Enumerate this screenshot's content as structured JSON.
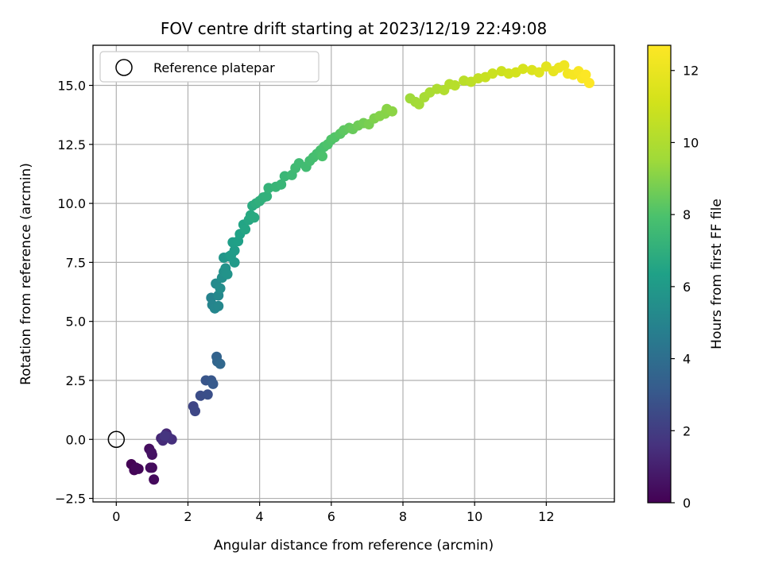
{
  "chart_data": {
    "type": "scatter",
    "title": "FOV centre drift starting at 2023/12/19 22:49:08",
    "xlabel": "Angular distance from reference (arcmin)",
    "ylabel": "Rotation from reference (arcmin)",
    "xlim": [
      -0.65,
      13.9
    ],
    "ylim": [
      -2.65,
      16.7
    ],
    "xticks": [
      0,
      2,
      4,
      6,
      8,
      10,
      12
    ],
    "yticks": [
      -2.5,
      0.0,
      2.5,
      5.0,
      7.5,
      10.0,
      12.5,
      15.0
    ],
    "ytick_labels": [
      "−2.5",
      "0.0",
      "2.5",
      "5.0",
      "7.5",
      "10.0",
      "12.5",
      "15.0"
    ],
    "grid": true,
    "legend": {
      "placement": "upper-left",
      "entries": [
        "Reference platepar"
      ]
    },
    "colorbar": {
      "label": "Hours from first FF file",
      "range": [
        0,
        12.7
      ],
      "ticks": [
        0,
        2,
        4,
        6,
        8,
        10,
        12
      ],
      "colormap": "viridis"
    },
    "reference_point": {
      "x": 0,
      "y": 0,
      "label": "Reference platepar"
    },
    "series": [
      {
        "columns": [
          "x",
          "y",
          "hours"
        ],
        "points": [
          [
            0.42,
            -1.05,
            0.05
          ],
          [
            0.5,
            -1.3,
            0.1
          ],
          [
            0.62,
            -1.25,
            0.15
          ],
          [
            0.55,
            -1.2,
            0.2
          ],
          [
            1.0,
            -1.2,
            0.25
          ],
          [
            1.05,
            -1.7,
            0.3
          ],
          [
            0.95,
            -1.2,
            0.35
          ],
          [
            0.92,
            -0.4,
            0.4
          ],
          [
            1.0,
            -0.65,
            0.5
          ],
          [
            0.98,
            -0.55,
            0.55
          ],
          [
            1.25,
            0.05,
            1.2
          ],
          [
            1.4,
            0.25,
            1.3
          ],
          [
            1.3,
            -0.05,
            1.4
          ],
          [
            1.55,
            0.0,
            1.5
          ],
          [
            1.45,
            0.1,
            1.6
          ],
          [
            1.35,
            0.15,
            1.7
          ],
          [
            2.15,
            1.4,
            2.3
          ],
          [
            2.2,
            1.2,
            2.4
          ],
          [
            2.35,
            1.85,
            2.6
          ],
          [
            2.55,
            1.9,
            2.7
          ],
          [
            2.5,
            2.5,
            2.9
          ],
          [
            2.65,
            2.5,
            3.0
          ],
          [
            2.7,
            2.35,
            3.1
          ],
          [
            2.8,
            3.5,
            3.5
          ],
          [
            2.82,
            3.3,
            3.6
          ],
          [
            2.9,
            3.2,
            3.7
          ],
          [
            2.65,
            6.0,
            4.9
          ],
          [
            2.68,
            5.7,
            5.0
          ],
          [
            2.75,
            5.55,
            5.1
          ],
          [
            2.85,
            5.65,
            5.15
          ],
          [
            2.85,
            6.1,
            5.2
          ],
          [
            2.78,
            6.6,
            5.3
          ],
          [
            2.9,
            6.4,
            5.4
          ],
          [
            2.95,
            6.85,
            5.5
          ],
          [
            3.0,
            7.1,
            5.6
          ],
          [
            3.05,
            7.25,
            5.65
          ],
          [
            3.1,
            7.0,
            5.7
          ],
          [
            3.0,
            7.7,
            5.8
          ],
          [
            3.15,
            7.75,
            5.9
          ],
          [
            3.3,
            7.5,
            6.0
          ],
          [
            3.2,
            7.8,
            6.05
          ],
          [
            3.3,
            8.0,
            6.1
          ],
          [
            3.25,
            8.35,
            6.2
          ],
          [
            3.4,
            8.4,
            6.3
          ],
          [
            3.45,
            8.7,
            6.4
          ],
          [
            3.55,
            9.1,
            6.5
          ],
          [
            3.6,
            8.9,
            6.55
          ],
          [
            3.7,
            9.3,
            6.6
          ],
          [
            3.75,
            9.5,
            6.7
          ],
          [
            3.85,
            9.4,
            6.75
          ],
          [
            3.8,
            9.9,
            6.8
          ],
          [
            3.9,
            10.0,
            6.9
          ],
          [
            4.0,
            10.1,
            7.0
          ],
          [
            4.1,
            10.25,
            7.05
          ],
          [
            4.2,
            10.3,
            7.1
          ],
          [
            4.25,
            10.65,
            7.2
          ],
          [
            4.45,
            10.7,
            7.3
          ],
          [
            4.6,
            10.8,
            7.35
          ],
          [
            4.7,
            11.15,
            7.4
          ],
          [
            4.9,
            11.2,
            7.5
          ],
          [
            5.0,
            11.5,
            7.55
          ],
          [
            5.1,
            11.7,
            7.6
          ],
          [
            5.3,
            11.55,
            7.65
          ],
          [
            5.4,
            11.8,
            7.7
          ],
          [
            5.5,
            11.95,
            7.75
          ],
          [
            5.6,
            12.1,
            7.8
          ],
          [
            5.7,
            12.25,
            7.85
          ],
          [
            5.8,
            12.4,
            7.9
          ],
          [
            5.75,
            12.0,
            7.95
          ],
          [
            5.9,
            12.5,
            8.0
          ],
          [
            6.0,
            12.7,
            8.05
          ],
          [
            6.1,
            12.8,
            8.1
          ],
          [
            6.25,
            12.95,
            8.2
          ],
          [
            6.35,
            13.1,
            8.3
          ],
          [
            6.5,
            13.2,
            8.4
          ],
          [
            6.6,
            13.15,
            8.5
          ],
          [
            6.75,
            13.3,
            8.6
          ],
          [
            6.9,
            13.4,
            8.7
          ],
          [
            7.05,
            13.35,
            8.8
          ],
          [
            7.2,
            13.6,
            8.9
          ],
          [
            7.35,
            13.7,
            9.0
          ],
          [
            7.5,
            13.8,
            9.05
          ],
          [
            7.55,
            14.0,
            9.1
          ],
          [
            7.7,
            13.9,
            9.15
          ],
          [
            8.2,
            14.45,
            9.5
          ],
          [
            8.35,
            14.3,
            9.6
          ],
          [
            8.45,
            14.2,
            9.65
          ],
          [
            8.6,
            14.5,
            9.75
          ],
          [
            8.75,
            14.7,
            9.85
          ],
          [
            8.95,
            14.85,
            9.95
          ],
          [
            9.15,
            14.8,
            10.05
          ],
          [
            9.3,
            15.05,
            10.15
          ],
          [
            9.45,
            15.0,
            10.25
          ],
          [
            9.7,
            15.2,
            10.35
          ],
          [
            9.9,
            15.15,
            10.45
          ],
          [
            10.1,
            15.3,
            10.6
          ],
          [
            10.3,
            15.35,
            10.75
          ],
          [
            10.5,
            15.5,
            10.85
          ],
          [
            10.75,
            15.6,
            10.95
          ],
          [
            10.95,
            15.5,
            11.05
          ],
          [
            11.15,
            15.55,
            11.15
          ],
          [
            11.35,
            15.7,
            11.3
          ],
          [
            11.6,
            15.65,
            11.45
          ],
          [
            11.8,
            15.55,
            11.6
          ],
          [
            12.0,
            15.8,
            11.75
          ],
          [
            12.2,
            15.6,
            11.9
          ],
          [
            12.35,
            15.75,
            12.05
          ],
          [
            12.5,
            15.85,
            12.2
          ],
          [
            12.6,
            15.5,
            12.3
          ],
          [
            12.75,
            15.45,
            12.4
          ],
          [
            12.9,
            15.6,
            12.5
          ],
          [
            13.0,
            15.3,
            12.6
          ],
          [
            13.1,
            15.45,
            12.65
          ],
          [
            13.2,
            15.1,
            12.7
          ]
        ]
      }
    ]
  }
}
